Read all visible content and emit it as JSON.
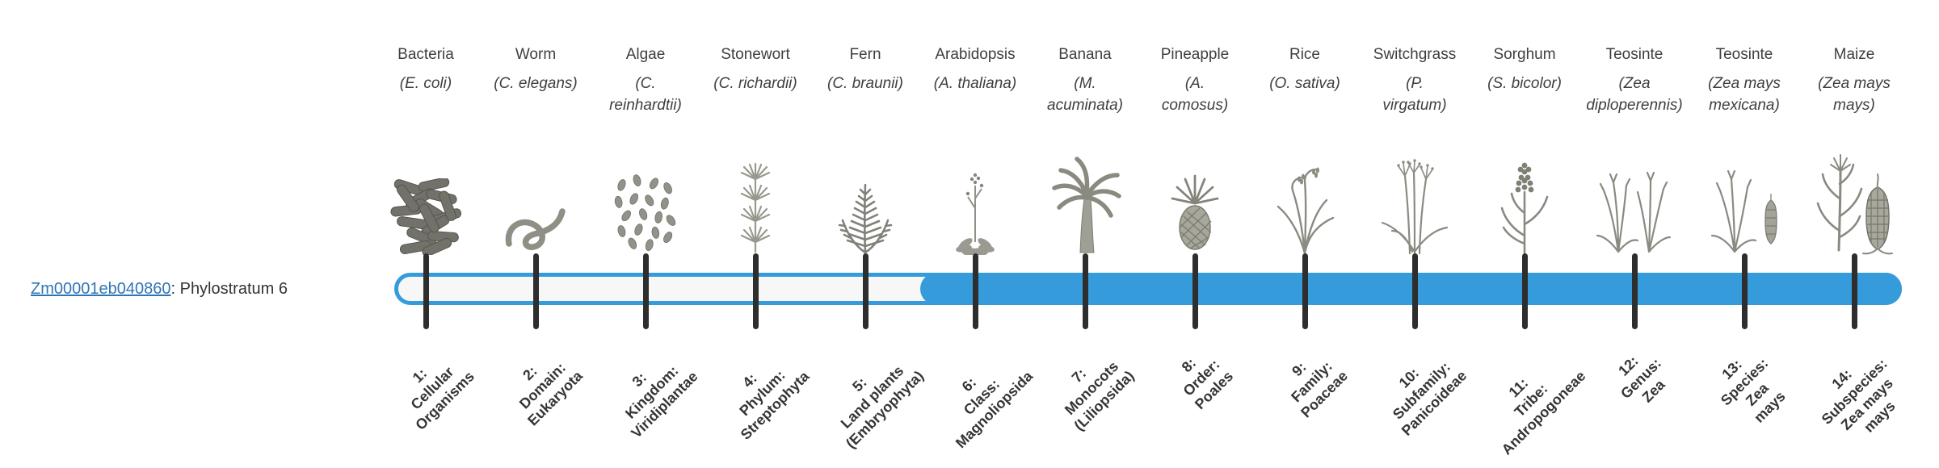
{
  "gene": {
    "id": "Zm00001eb040860",
    "suffix": ": Phylostratum 6",
    "phylostratum": 6
  },
  "colors": {
    "accent_blue": "#359bdb",
    "track_fill": "#f7f7f7",
    "tick_color": "#2e2e2e",
    "link_blue": "#2e75b6",
    "text_color": "#3f3f3f"
  },
  "bar": {
    "filled_from_stratum": 6,
    "total_strata": 14
  },
  "organisms": [
    {
      "name": "Bacteria",
      "sci": "(E. coli)",
      "icon": "bacteria-icon"
    },
    {
      "name": "Worm",
      "sci": "(C. elegans)",
      "icon": "worm-icon"
    },
    {
      "name": "Algae",
      "sci": "(C.\nreinhardtii)",
      "icon": "algae-icon"
    },
    {
      "name": "Stonewort",
      "sci": "(C. richardii)",
      "icon": "stonewort-icon"
    },
    {
      "name": "Fern",
      "sci": "(C. braunii)",
      "icon": "fern-icon"
    },
    {
      "name": "Arabidopsis",
      "sci": "(A. thaliana)",
      "icon": "arabidopsis-icon"
    },
    {
      "name": "Banana",
      "sci": "(M.\nacuminata)",
      "icon": "banana-icon"
    },
    {
      "name": "Pineapple",
      "sci": "(A.\ncomosus)",
      "icon": "pineapple-icon"
    },
    {
      "name": "Rice",
      "sci": "(O. sativa)",
      "icon": "rice-icon"
    },
    {
      "name": "Switchgrass",
      "sci": "(P.\nvirgatum)",
      "icon": "switchgrass-icon"
    },
    {
      "name": "Sorghum",
      "sci": "(S. bicolor)",
      "icon": "sorghum-icon"
    },
    {
      "name": "Teosinte",
      "sci": "(Zea\ndiploperennis)",
      "icon": "teosinte-diploperennis-icon"
    },
    {
      "name": "Teosinte",
      "sci": "(Zea mays\nmexicana)",
      "icon": "teosinte-mexicana-icon"
    },
    {
      "name": "Maize",
      "sci": "(Zea mays\nmays)",
      "icon": "maize-icon"
    }
  ],
  "ticks": [
    {
      "label": "1:\nCellular\nOrganisms"
    },
    {
      "label": "2:\nDomain:\nEukaryota"
    },
    {
      "label": "3:\nKingdom:\nViridiplantae"
    },
    {
      "label": "4:\nPhylum:\nStreptophyta"
    },
    {
      "label": "5:\nLand plants\n(Embryophyta)"
    },
    {
      "label": "6:\nClass:\nMagnoliopsida"
    },
    {
      "label": "7:\nMonocots\n(Liliopsida)"
    },
    {
      "label": "8:\nOrder:\nPoales"
    },
    {
      "label": "9:\nFamily:\nPoaceae"
    },
    {
      "label": "10:\nSubfamily:\nPanicoideae"
    },
    {
      "label": "11:\nTribe:\nAndropogoneae"
    },
    {
      "label": "12:\nGenus:\nZea"
    },
    {
      "label": "13:\nSpecies:\nZea\nmays"
    },
    {
      "label": "14:\nSubspecies:\nZea mays\nmays"
    }
  ],
  "chart_data": {
    "type": "bar",
    "orientation": "horizontal",
    "title": "",
    "gene": "Zm00001eb040860",
    "value": 6,
    "value_label": "Phylostratum 6",
    "filled_range": [
      6,
      14
    ],
    "axis_range": [
      1,
      14
    ],
    "categories": [
      "1: Cellular Organisms",
      "2: Domain: Eukaryota",
      "3: Kingdom: Viridiplantae",
      "4: Phylum: Streptophyta",
      "5: Land plants (Embryophyta)",
      "6: Class: Magnoliopsida",
      "7: Monocots (Liliopsida)",
      "8: Order: Poales",
      "9: Family: Poaceae",
      "10: Subfamily: Panicoideae",
      "11: Tribe: Andropogoneae",
      "12: Genus: Zea",
      "13: Species: Zea mays",
      "14: Subspecies: Zea mays mays"
    ],
    "legend": "none",
    "grid": false
  }
}
